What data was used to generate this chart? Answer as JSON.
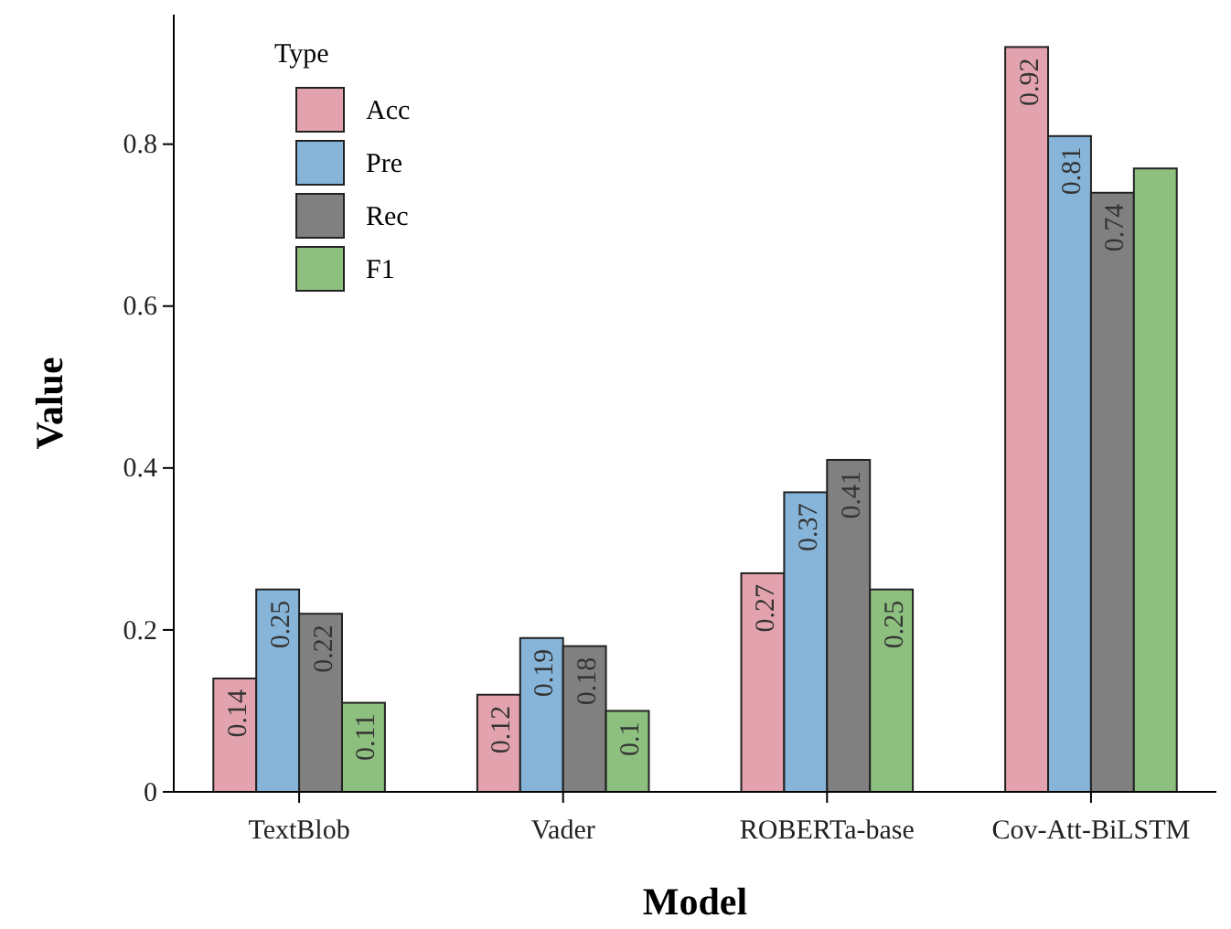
{
  "chart_data": {
    "type": "bar",
    "xlabel": "Model",
    "ylabel": "Value",
    "legend_title": "Type",
    "legend": "top left",
    "categories": [
      "TextBlob",
      "Vader",
      "ROBERTa-base",
      "Cov-Att-BiLSTM"
    ],
    "ylim": [
      0,
      0.96
    ],
    "yticks": [
      0,
      0.2,
      0.4,
      0.6,
      0.8
    ],
    "series": [
      {
        "name": "Acc",
        "color": "#e3a3ae",
        "values": [
          0.14,
          0.12,
          0.27,
          0.92
        ],
        "value_labels": [
          "0.14",
          "0.12",
          "0.27",
          "0.92"
        ]
      },
      {
        "name": "Pre",
        "color": "#86b5d9",
        "values": [
          0.25,
          0.19,
          0.37,
          0.81
        ],
        "value_labels": [
          "0.25",
          "0.19",
          "0.37",
          "0.81"
        ]
      },
      {
        "name": "Rec",
        "color": "#808080",
        "values": [
          0.22,
          0.18,
          0.41,
          0.74
        ],
        "value_labels": [
          "0.22",
          "0.18",
          "0.41",
          "0.74"
        ]
      },
      {
        "name": "F1",
        "color": "#8dbf7f",
        "values": [
          0.11,
          0.1,
          0.25,
          0.77
        ],
        "value_labels": [
          "0.11",
          "0.1",
          "0.25",
          null
        ]
      }
    ]
  }
}
